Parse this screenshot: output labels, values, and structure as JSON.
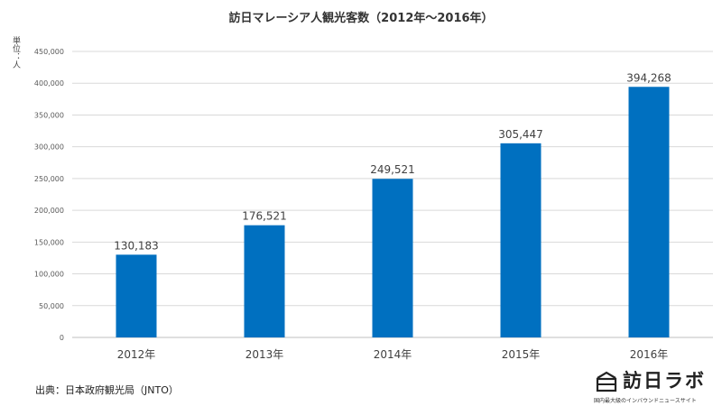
{
  "chart_data": {
    "type": "bar",
    "title": "訪日マレーシア人観光客数（2012年〜2016年）",
    "unit_label": "単位：人",
    "categories": [
      "2012年",
      "2013年",
      "2014年",
      "2015年",
      "2016年"
    ],
    "values": [
      130183,
      176521,
      249521,
      305447,
      394268
    ],
    "value_labels": [
      "130,183",
      "176,521",
      "249,521",
      "305,447",
      "394,268"
    ],
    "ylim": [
      0,
      450000
    ],
    "yticks": [
      0,
      50000,
      100000,
      150000,
      200000,
      250000,
      300000,
      350000,
      400000,
      450000
    ],
    "ytick_labels": [
      "0",
      "50,000",
      "100,000",
      "150,000",
      "200,000",
      "250,000",
      "300,000",
      "350,000",
      "400,000",
      "450,000"
    ],
    "grid": true,
    "bar_color": "#0070C0"
  },
  "source": "出典：日本政府観光局（JNTO）",
  "logo": {
    "name": "訪日ラボ",
    "tagline": "国内最大級のインバウンドニュースサイト"
  }
}
